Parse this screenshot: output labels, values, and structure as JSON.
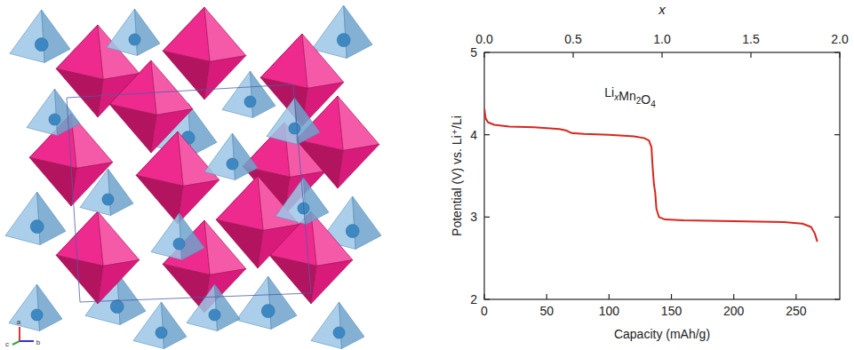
{
  "chart_data": {
    "type": "line",
    "annotation": "LixMn2O4",
    "x_label": "Capacity (mAh/g)",
    "x2_label": "x",
    "y_label": "Potential (V) vs. Li⁺/Li",
    "x": [
      0,
      1,
      3,
      8,
      20,
      40,
      60,
      66,
      70,
      80,
      100,
      120,
      128,
      132,
      134,
      135,
      136,
      137,
      138,
      140,
      145,
      160,
      200,
      240,
      255,
      262,
      265,
      267
    ],
    "values": [
      4.32,
      4.2,
      4.15,
      4.12,
      4.1,
      4.09,
      4.07,
      4.05,
      4.02,
      4.01,
      4.0,
      3.98,
      3.96,
      3.93,
      3.85,
      3.6,
      3.4,
      3.3,
      3.1,
      3.0,
      2.97,
      2.96,
      2.95,
      2.94,
      2.92,
      2.88,
      2.8,
      2.7
    ],
    "color": "#d7261e",
    "line_style": "solid",
    "grid": false,
    "xlim": [
      0,
      285
    ],
    "xticks": [
      0,
      50,
      100,
      150,
      200,
      250
    ],
    "x2lim": [
      0,
      2
    ],
    "x2ticks": [
      {
        "value": 0,
        "label": "0.0"
      },
      {
        "value": 0.5,
        "label": "0.5"
      },
      {
        "value": 1,
        "label": "1.0"
      },
      {
        "value": 1.5,
        "label": "1.5"
      },
      {
        "value": 2,
        "label": "2.0"
      }
    ],
    "ylim": [
      2,
      5
    ],
    "yticks": [
      2,
      3,
      4,
      5
    ]
  },
  "structure": {
    "axis_labels": [
      "a",
      "c",
      "b"
    ]
  }
}
